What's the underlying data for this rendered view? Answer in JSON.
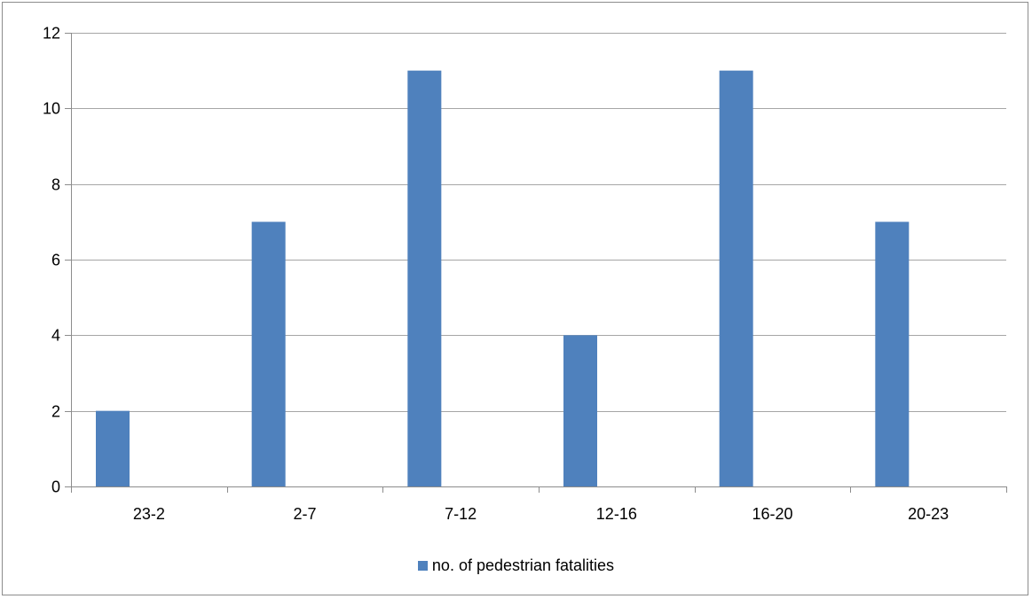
{
  "chart_data": {
    "type": "bar",
    "categories": [
      "23-2",
      "2-7",
      "7-12",
      "12-16",
      "16-20",
      "20-23"
    ],
    "series": [
      {
        "name": "no. of pedestrian fatalities",
        "values": [
          2,
          7,
          11,
          4,
          11,
          7
        ],
        "color": "#4f81bd"
      }
    ],
    "ylim": [
      0,
      12
    ],
    "yticks": [
      0,
      2,
      4,
      6,
      8,
      10,
      12
    ],
    "grid": true,
    "legend_position": "bottom",
    "title": "",
    "xlabel": "",
    "ylabel": ""
  },
  "colors": {
    "bar": "#4f81bd",
    "gridline": "#a6a6a6",
    "axis": "#8c8c8c",
    "frame": "#8c8c8c"
  }
}
